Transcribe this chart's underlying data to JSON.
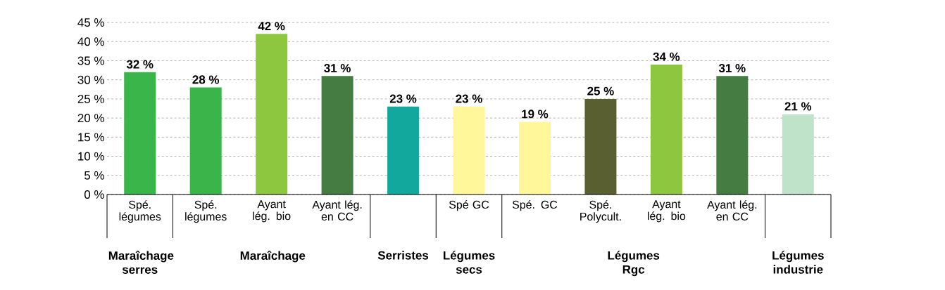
{
  "chart_data": {
    "type": "bar",
    "categories": [
      "Spé. légumes",
      "Spé. légumes",
      "Ayant lég. bio",
      "Ayant lég. en CC",
      null,
      "Spé GC",
      "Spé. GC",
      "Spé. Polycult.",
      "Ayant lég. bio",
      "Ayant lég. en CC",
      null
    ],
    "values": [
      32,
      28,
      42,
      31,
      23,
      23,
      19,
      25,
      34,
      31,
      21
    ],
    "colors": [
      "#3ab54a",
      "#3ab54a",
      "#8dc63f",
      "#457c42",
      "#12a89d",
      "#fff799",
      "#fff799",
      "#5a5f32",
      "#8dc63f",
      "#457c42",
      "#bfe3c9"
    ],
    "value_labels": [
      "32 %",
      "28 %",
      "42 %",
      "31 %",
      "23 %",
      "23 %",
      "19 %",
      "25 %",
      "34 %",
      "31 %",
      "21 %"
    ],
    "annotations": [
      "Maraîchage serres",
      "Maraîchage",
      "Serristes",
      "Légumes secs",
      "Légumes  Rgc",
      "Légumes industrie"
    ],
    "ylim": [
      0,
      45
    ],
    "yticks": [
      {
        "value": 0,
        "label": "0 %"
      },
      {
        "value": 5,
        "label": "5 %"
      },
      {
        "value": 10,
        "label": "10 %"
      },
      {
        "value": 15,
        "label": "15 %"
      },
      {
        "value": 20,
        "label": "20 %"
      },
      {
        "value": 25,
        "label": "25 %"
      },
      {
        "value": 30,
        "label": "30 %"
      },
      {
        "value": 35,
        "label": "35 %"
      },
      {
        "value": 40,
        "label": "40 %"
      },
      {
        "value": 45,
        "label": "45 %"
      }
    ],
    "grid": "y"
  }
}
